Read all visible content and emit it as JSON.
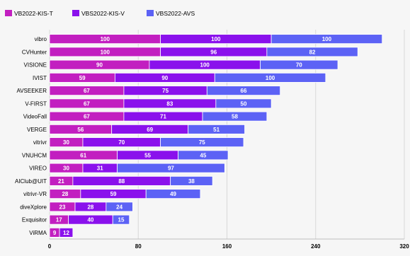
{
  "chart_data": {
    "type": "bar",
    "orientation": "horizontal",
    "stacked": true,
    "categories": [
      "vibro",
      "CVHunter",
      "VISIONE",
      "IVIST",
      "AVSEEKER",
      "V-FIRST",
      "VideoFall",
      "VERGE",
      "vitrivr",
      "VNUHCM",
      "VIREO",
      "AIClub@UIT",
      "vitrivr-VR",
      "diveXplore",
      "Exquisitor",
      "ViRMA"
    ],
    "series": [
      {
        "name": "VB2022-KIS-T",
        "color": "#c21fc0",
        "values": [
          100,
          100,
          90,
          59,
          67,
          67,
          67,
          56,
          30,
          61,
          30,
          21,
          28,
          23,
          17,
          9
        ]
      },
      {
        "name": "VBS2022-KIS-V",
        "color": "#8a11ec",
        "values": [
          100,
          96,
          100,
          90,
          75,
          83,
          71,
          69,
          70,
          55,
          31,
          88,
          59,
          28,
          40,
          12
        ]
      },
      {
        "name": "VBS2022-AVS",
        "color": "#5c62f5",
        "values": [
          100,
          82,
          70,
          100,
          66,
          50,
          58,
          51,
          75,
          45,
          97,
          38,
          49,
          24,
          15,
          null
        ]
      }
    ],
    "xlim": [
      0,
      320
    ],
    "xticks": [
      "0",
      "80",
      "160",
      "240",
      "320"
    ],
    "grid": true,
    "legend_position": "top-left"
  }
}
